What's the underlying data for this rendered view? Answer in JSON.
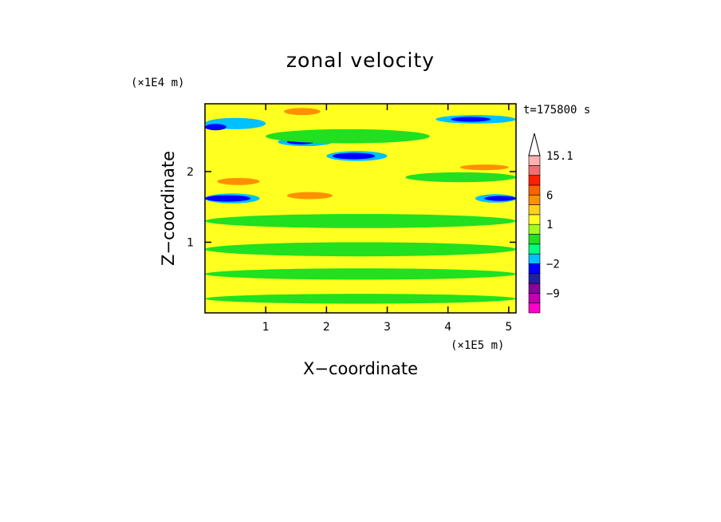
{
  "chart_data": {
    "type": "heatmap",
    "title": "zonal velocity",
    "xlabel": "X−coordinate",
    "ylabel": "Z−coordinate",
    "x_unit": "(×1E5 m)",
    "y_unit": "(×1E4 m)",
    "time_label": "t=175800 s",
    "xlim": [
      0,
      5.12
    ],
    "ylim": [
      0,
      2.96
    ],
    "x_ticks": [
      "1",
      "2",
      "3",
      "4",
      "5"
    ],
    "y_ticks": [
      "1",
      "2"
    ],
    "colorbar": {
      "labels": [
        {
          "text": "15.1",
          "value": 15.1
        },
        {
          "text": "6",
          "value": 6
        },
        {
          "text": "1",
          "value": 1
        },
        {
          "text": "−2",
          "value": -2
        },
        {
          "text": "−9",
          "value": -9
        }
      ],
      "levels": [
        {
          "value": -14,
          "color": "#ff00c8"
        },
        {
          "value": -11.5,
          "color": "#c000b0"
        },
        {
          "value": -9,
          "color": "#8a00a0"
        },
        {
          "value": -5.5,
          "color": "#2020a0"
        },
        {
          "value": -3,
          "color": "#0000ff"
        },
        {
          "value": -2,
          "color": "#00c0ff"
        },
        {
          "value": -1,
          "color": "#00ff80"
        },
        {
          "value": 0,
          "color": "#20e020"
        },
        {
          "value": 0.5,
          "color": "#a0ff20"
        },
        {
          "value": 1,
          "color": "#ffff20"
        },
        {
          "value": 2,
          "color": "#ffd020"
        },
        {
          "value": 4,
          "color": "#ff9000"
        },
        {
          "value": 6,
          "color": "#ff6000"
        },
        {
          "value": 8,
          "color": "#ff2000"
        },
        {
          "value": 11,
          "color": "#f07070"
        },
        {
          "value": 13,
          "color": "#ffb0b0"
        },
        {
          "value": 15.1,
          "color": "#ffffff"
        }
      ]
    },
    "bands": [
      {
        "z": 2.68,
        "thickness": 0.16,
        "color": "#00c0ff",
        "x_start": 0.0,
        "x_end": 1.0
      },
      {
        "z": 2.63,
        "thickness": 0.09,
        "color": "#0000ff",
        "x_start": 0.0,
        "x_end": 0.35
      },
      {
        "z": 2.74,
        "thickness": 0.12,
        "color": "#00c0ff",
        "x_start": 3.8,
        "x_end": 5.12
      },
      {
        "z": 2.74,
        "thickness": 0.07,
        "color": "#0000ff",
        "x_start": 4.05,
        "x_end": 4.7
      },
      {
        "z": 2.42,
        "thickness": 0.12,
        "color": "#00c0ff",
        "x_start": 1.2,
        "x_end": 2.1
      },
      {
        "z": 2.42,
        "thickness": 0.07,
        "color": "#0000ff",
        "x_start": 1.35,
        "x_end": 1.8
      },
      {
        "z": 2.22,
        "thickness": 0.14,
        "color": "#00c0ff",
        "x_start": 2.0,
        "x_end": 3.0
      },
      {
        "z": 2.22,
        "thickness": 0.09,
        "color": "#0000ff",
        "x_start": 2.1,
        "x_end": 2.8
      },
      {
        "z": 1.62,
        "thickness": 0.14,
        "color": "#00c0ff",
        "x_start": 0.0,
        "x_end": 0.9
      },
      {
        "z": 1.62,
        "thickness": 0.09,
        "color": "#0000ff",
        "x_start": 0.0,
        "x_end": 0.75
      },
      {
        "z": 1.62,
        "thickness": 0.12,
        "color": "#00c0ff",
        "x_start": 4.45,
        "x_end": 5.12
      },
      {
        "z": 1.62,
        "thickness": 0.07,
        "color": "#0000ff",
        "x_start": 4.6,
        "x_end": 5.12
      },
      {
        "z": 1.86,
        "thickness": 0.1,
        "color": "#ff9000",
        "x_start": 0.2,
        "x_end": 0.9
      },
      {
        "z": 1.66,
        "thickness": 0.1,
        "color": "#ff9000",
        "x_start": 1.35,
        "x_end": 2.1
      },
      {
        "z": 2.06,
        "thickness": 0.08,
        "color": "#ff9000",
        "x_start": 4.2,
        "x_end": 5.0
      },
      {
        "z": 2.85,
        "thickness": 0.1,
        "color": "#ff9000",
        "x_start": 1.3,
        "x_end": 1.9
      },
      {
        "z": 1.3,
        "thickness": 0.2,
        "color": "#20e020",
        "x_start": 0.0,
        "x_end": 5.12
      },
      {
        "z": 0.9,
        "thickness": 0.2,
        "color": "#20e020",
        "x_start": 0.0,
        "x_end": 5.12
      },
      {
        "z": 0.55,
        "thickness": 0.16,
        "color": "#20e020",
        "x_start": 0.0,
        "x_end": 5.12
      },
      {
        "z": 0.2,
        "thickness": 0.14,
        "color": "#20e020",
        "x_start": 0.0,
        "x_end": 5.12
      },
      {
        "z": 1.92,
        "thickness": 0.14,
        "color": "#20e020",
        "x_start": 3.3,
        "x_end": 5.12
      },
      {
        "z": 2.5,
        "thickness": 0.2,
        "color": "#20e020",
        "x_start": 1.0,
        "x_end": 3.7
      }
    ]
  }
}
